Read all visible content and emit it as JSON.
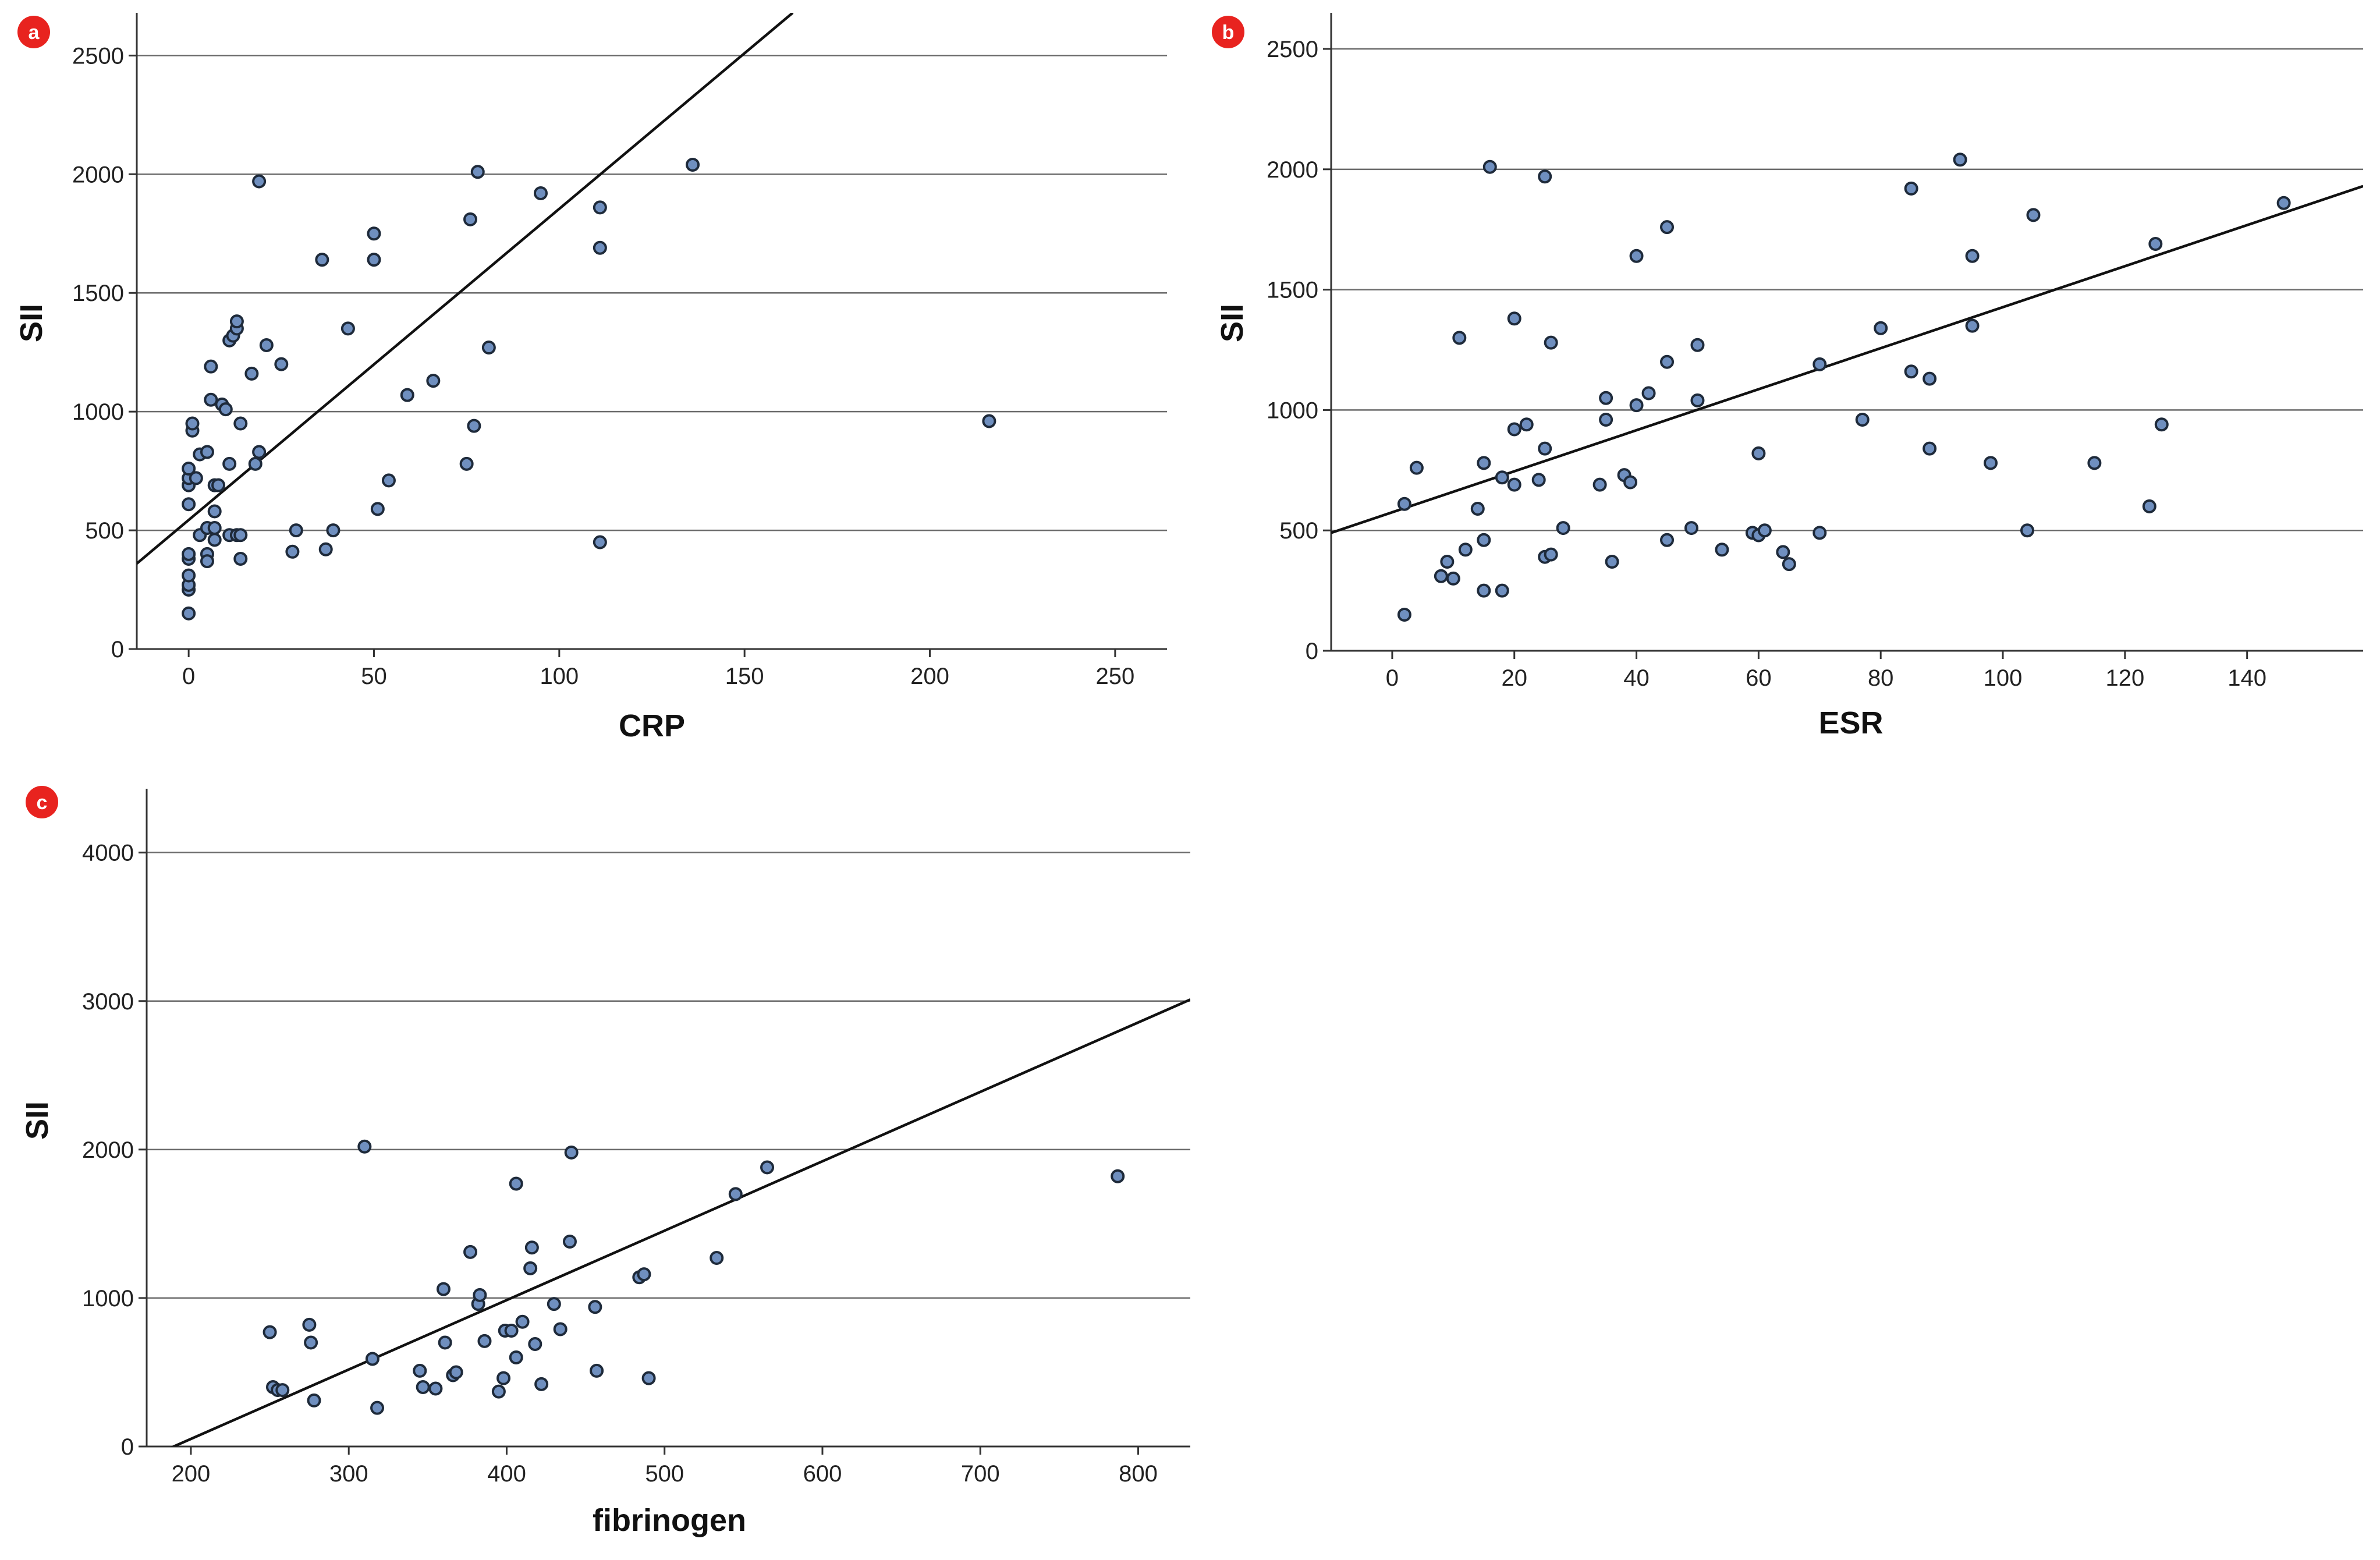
{
  "colors": {
    "badge": "#e8231f",
    "point_fill": "#6f8fbf",
    "point_stroke": "#1e2a3a",
    "grid": "#6b6b6b",
    "axis": "#333333",
    "fit_line": "#111111"
  },
  "chart_data": [
    {
      "panel_label": "a",
      "type": "scatter",
      "title": "",
      "xlabel": "CRP",
      "ylabel": "SII",
      "xlim": [
        -14,
        264
      ],
      "ylim": [
        0,
        2680
      ],
      "xticks": [
        0,
        50,
        100,
        150,
        200,
        250
      ],
      "yticks": [
        0,
        500,
        1000,
        1500,
        2000,
        2500
      ],
      "grid": "horizontal",
      "fit_line": {
        "x": [
          -14,
          163
        ],
        "y": [
          360,
          2680
        ]
      },
      "points": [
        [
          0,
          150
        ],
        [
          0,
          250
        ],
        [
          0,
          270
        ],
        [
          0,
          310
        ],
        [
          0,
          380
        ],
        [
          0,
          400
        ],
        [
          0,
          610
        ],
        [
          0,
          690
        ],
        [
          0,
          720
        ],
        [
          0,
          760
        ],
        [
          1,
          920
        ],
        [
          1,
          950
        ],
        [
          2,
          720
        ],
        [
          3,
          480
        ],
        [
          3,
          820
        ],
        [
          5,
          510
        ],
        [
          5,
          400
        ],
        [
          5,
          370
        ],
        [
          5,
          830
        ],
        [
          6,
          1050
        ],
        [
          6,
          1190
        ],
        [
          7,
          580
        ],
        [
          7,
          690
        ],
        [
          7,
          510
        ],
        [
          7,
          460
        ],
        [
          8,
          690
        ],
        [
          9,
          1030
        ],
        [
          10,
          1010
        ],
        [
          11,
          480
        ],
        [
          11,
          780
        ],
        [
          11,
          1300
        ],
        [
          12,
          1320
        ],
        [
          13,
          1350
        ],
        [
          13,
          1380
        ],
        [
          13,
          480
        ],
        [
          14,
          480
        ],
        [
          14,
          380
        ],
        [
          14,
          950
        ],
        [
          17,
          1160
        ],
        [
          18,
          780
        ],
        [
          19,
          830
        ],
        [
          19,
          1970
        ],
        [
          21,
          1280
        ],
        [
          25,
          1200
        ],
        [
          28,
          410
        ],
        [
          29,
          500
        ],
        [
          36,
          1640
        ],
        [
          37,
          420
        ],
        [
          39,
          500
        ],
        [
          43,
          1350
        ],
        [
          50,
          1640
        ],
        [
          50,
          1750
        ],
        [
          51,
          590
        ],
        [
          54,
          710
        ],
        [
          59,
          1070
        ],
        [
          66,
          1130
        ],
        [
          75,
          780
        ],
        [
          76,
          1810
        ],
        [
          77,
          940
        ],
        [
          78,
          2010
        ],
        [
          81,
          1270
        ],
        [
          95,
          1920
        ],
        [
          111,
          1860
        ],
        [
          111,
          1690
        ],
        [
          111,
          450
        ],
        [
          136,
          2040
        ],
        [
          216,
          960
        ]
      ]
    },
    {
      "panel_label": "b",
      "type": "scatter",
      "title": "",
      "xlabel": "ESR",
      "ylabel": "SII",
      "xlim": [
        -10,
        159
      ],
      "ylim": [
        0,
        2650
      ],
      "xticks": [
        0,
        20,
        40,
        60,
        80,
        100,
        120,
        140
      ],
      "yticks": [
        0,
        500,
        1000,
        1500,
        2000,
        2500
      ],
      "grid": "horizontal",
      "fit_line": {
        "x": [
          -10,
          159
        ],
        "y": [
          490,
          1930
        ]
      },
      "points": [
        [
          2,
          150
        ],
        [
          2,
          610
        ],
        [
          4,
          760
        ],
        [
          8,
          310
        ],
        [
          9,
          370
        ],
        [
          10,
          300
        ],
        [
          11,
          1300
        ],
        [
          12,
          420
        ],
        [
          14,
          590
        ],
        [
          15,
          460
        ],
        [
          15,
          250
        ],
        [
          15,
          780
        ],
        [
          16,
          2010
        ],
        [
          18,
          250
        ],
        [
          18,
          720
        ],
        [
          20,
          690
        ],
        [
          20,
          920
        ],
        [
          20,
          1380
        ],
        [
          22,
          940
        ],
        [
          24,
          710
        ],
        [
          25,
          840
        ],
        [
          25,
          390
        ],
        [
          25,
          1970
        ],
        [
          26,
          400
        ],
        [
          26,
          1280
        ],
        [
          28,
          510
        ],
        [
          34,
          690
        ],
        [
          35,
          960
        ],
        [
          35,
          1050
        ],
        [
          36,
          370
        ],
        [
          38,
          730
        ],
        [
          39,
          700
        ],
        [
          40,
          1020
        ],
        [
          40,
          1640
        ],
        [
          42,
          1070
        ],
        [
          45,
          1200
        ],
        [
          45,
          460
        ],
        [
          45,
          1760
        ],
        [
          49,
          510
        ],
        [
          50,
          1270
        ],
        [
          50,
          1040
        ],
        [
          54,
          420
        ],
        [
          59,
          490
        ],
        [
          60,
          480
        ],
        [
          60,
          820
        ],
        [
          61,
          500
        ],
        [
          64,
          410
        ],
        [
          65,
          360
        ],
        [
          70,
          490
        ],
        [
          70,
          1190
        ],
        [
          77,
          960
        ],
        [
          80,
          1340
        ],
        [
          85,
          1160
        ],
        [
          85,
          1920
        ],
        [
          88,
          840
        ],
        [
          88,
          1130
        ],
        [
          93,
          2040
        ],
        [
          95,
          1640
        ],
        [
          95,
          1350
        ],
        [
          98,
          780
        ],
        [
          104,
          500
        ],
        [
          105,
          1810
        ],
        [
          115,
          780
        ],
        [
          124,
          600
        ],
        [
          125,
          1690
        ],
        [
          126,
          940
        ],
        [
          146,
          1860
        ]
      ]
    },
    {
      "panel_label": "c",
      "type": "scatter",
      "title": "",
      "xlabel": "fibrinogen",
      "ylabel": "SII",
      "xlim": [
        172,
        833
      ],
      "ylim": [
        0,
        4430
      ],
      "xticks": [
        200,
        300,
        400,
        500,
        600,
        700,
        800
      ],
      "yticks": [
        0,
        1000,
        2000,
        3000,
        4000
      ],
      "grid": "horizontal",
      "fit_line": {
        "x": [
          172,
          833
        ],
        "y": [
          -80,
          3010
        ]
      },
      "points": [
        [
          250,
          770
        ],
        [
          252,
          400
        ],
        [
          255,
          380
        ],
        [
          258,
          380
        ],
        [
          275,
          820
        ],
        [
          276,
          700
        ],
        [
          278,
          310
        ],
        [
          310,
          2020
        ],
        [
          315,
          590
        ],
        [
          318,
          260
        ],
        [
          345,
          510
        ],
        [
          347,
          400
        ],
        [
          355,
          390
        ],
        [
          360,
          1060
        ],
        [
          361,
          700
        ],
        [
          366,
          480
        ],
        [
          368,
          500
        ],
        [
          377,
          1310
        ],
        [
          382,
          960
        ],
        [
          383,
          1020
        ],
        [
          386,
          710
        ],
        [
          395,
          370
        ],
        [
          398,
          460
        ],
        [
          399,
          780
        ],
        [
          403,
          780
        ],
        [
          406,
          1770
        ],
        [
          406,
          600
        ],
        [
          410,
          840
        ],
        [
          415,
          1200
        ],
        [
          416,
          1340
        ],
        [
          418,
          690
        ],
        [
          422,
          420
        ],
        [
          430,
          960
        ],
        [
          434,
          790
        ],
        [
          440,
          1380
        ],
        [
          441,
          1980
        ],
        [
          456,
          940
        ],
        [
          457,
          510
        ],
        [
          484,
          1140
        ],
        [
          487,
          1160
        ],
        [
          490,
          460
        ],
        [
          533,
          1270
        ],
        [
          545,
          1700
        ],
        [
          565,
          1880
        ],
        [
          787,
          1820
        ]
      ]
    }
  ]
}
